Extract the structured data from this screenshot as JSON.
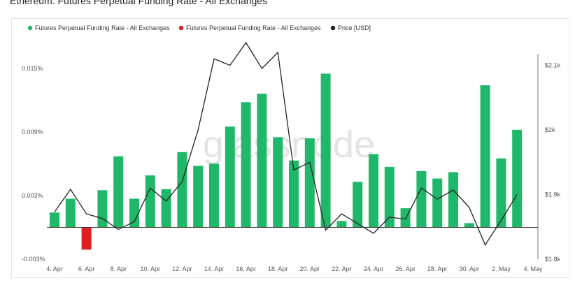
{
  "title": "Ethereum: Futures Perpetual Funding Rate - All Exchanges",
  "watermark": "glassnode",
  "chart_data": {
    "type": "bar",
    "title": "Ethereum: Futures Perpetual Funding Rate - All Exchanges",
    "legend_position": "top-left",
    "grid": false,
    "x_tick_labels": [
      "4. Apr",
      "6. Apr",
      "8. Apr",
      "10. Apr",
      "12. Apr",
      "14. Apr",
      "16. Apr",
      "18. Apr",
      "20. Apr",
      "22. Apr",
      "24. Apr",
      "26. Apr",
      "28. Apr",
      "30. Apr",
      "2. May",
      "4. May"
    ],
    "y_left": {
      "ylim": [
        -0.003,
        0.0165
      ],
      "ticks": [
        -0.003,
        0.003,
        0.009,
        0.015
      ],
      "tick_labels": [
        "-0.003%",
        "0.003%",
        "0.009%",
        "0.015%"
      ]
    },
    "y_right": {
      "ylim": [
        1.8,
        2.12
      ],
      "ticks": [
        1.8,
        1.9,
        2.0,
        2.1
      ],
      "tick_labels": [
        "$1.8k",
        "$1.9k",
        "$2k",
        "$2.1k"
      ]
    },
    "series": [
      {
        "name": "Futures Perpetual Funding Rate - All Exchanges",
        "color": "#1fb86a",
        "kind": "positive-bars"
      },
      {
        "name": "Futures Perpetual Funding Rate - All Exchanges",
        "color": "#e02020",
        "kind": "negative-bars"
      },
      {
        "name": "Price [USD]",
        "color": "#222222",
        "kind": "line"
      }
    ],
    "funding_rate": [
      0.0014,
      0.0027,
      -0.0021,
      0.0035,
      0.0067,
      0.0027,
      0.0049,
      0.0036,
      0.0071,
      0.0058,
      0.006,
      0.0095,
      0.0118,
      0.0126,
      0.0085,
      0.0063,
      0.0084,
      0.0145,
      0.0006,
      0.0043,
      0.0069,
      0.0057,
      0.0018,
      0.0053,
      0.0046,
      0.0052,
      0.0004,
      0.0134,
      0.0065,
      0.0092
    ],
    "price": [
      1.873,
      1.908,
      1.87,
      1.863,
      1.846,
      1.858,
      1.91,
      1.89,
      1.92,
      2.0,
      2.11,
      2.1,
      2.135,
      2.095,
      2.12,
      1.938,
      1.95,
      1.845,
      1.87,
      1.855,
      1.84,
      1.865,
      1.862,
      1.91,
      1.893,
      1.907,
      1.88,
      1.822,
      1.86,
      1.9
    ]
  }
}
